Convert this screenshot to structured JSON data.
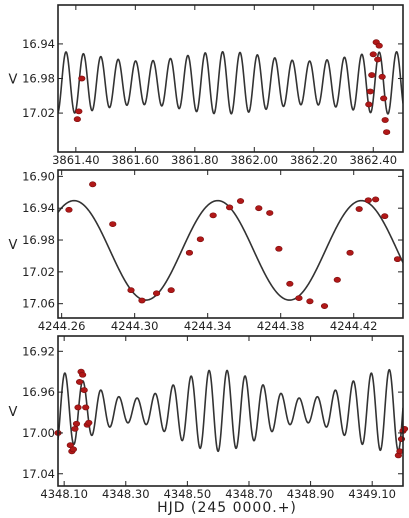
{
  "chart_data": [
    {
      "type": "line",
      "ylabel": "V",
      "xlabel": "",
      "xlim": [
        3861.34,
        3862.5
      ],
      "ylim": [
        17.065,
        16.895
      ],
      "y_inverted": true,
      "xticks": [
        3861.4,
        3861.6,
        3861.8,
        3862.0,
        3862.2,
        3862.4
      ],
      "xtick_labels": [
        "3861.40",
        "3861.60",
        "3861.80",
        "3862.00",
        "3862.20",
        "3862.40"
      ],
      "yticks": [
        16.94,
        16.98,
        17.02
      ],
      "ytick_labels": [
        "16.94",
        "16.98",
        "17.02"
      ],
      "model": {
        "period_days": 0.0585,
        "phase_peak_x": 3861.367,
        "mean_mag": 16.985,
        "amplitude": 0.036,
        "beat_period_days": 0.56,
        "beat_peak_x": 3861.9,
        "beat_depth": 0.15,
        "x_start": 3861.34,
        "x_end": 3862.5
      },
      "series": [
        {
          "kind": "observations",
          "x": [
            3861.405,
            3861.41,
            3861.42,
            3862.385,
            3862.39,
            3862.395,
            3862.4,
            3862.41,
            3862.415,
            3862.42,
            3862.43,
            3862.435,
            3862.44,
            3862.445
          ],
          "y": [
            17.027,
            17.018,
            16.98,
            17.01,
            16.995,
            16.976,
            16.952,
            16.938,
            16.958,
            16.942,
            16.978,
            17.003,
            17.028,
            17.042
          ]
        }
      ]
    },
    {
      "type": "line",
      "ylabel": "V",
      "xlabel": "",
      "xlim": [
        4244.258,
        4244.447
      ],
      "ylim": [
        17.078,
        16.892
      ],
      "y_inverted": true,
      "xticks": [
        4244.26,
        4244.3,
        4244.34,
        4244.38,
        4244.42
      ],
      "xtick_labels": [
        "4244.26",
        "4244.30",
        "4244.34",
        "4244.38",
        "4244.42"
      ],
      "yticks": [
        16.9,
        16.94,
        16.98,
        17.02,
        17.06
      ],
      "ytick_labels": [
        "16.90",
        "16.94",
        "16.98",
        "17.02",
        "17.06"
      ],
      "model": {
        "period_days": 0.0787,
        "phase_peak_x": 4244.3455,
        "mean_mag": 16.993,
        "amplitude": 0.0625,
        "x_start": 4244.258,
        "x_end": 4244.447
      },
      "series": [
        {
          "kind": "observations",
          "x": [
            4244.264,
            4244.277,
            4244.288,
            4244.298,
            4244.304,
            4244.312,
            4244.32,
            4244.33,
            4244.336,
            4244.343,
            4244.352,
            4244.358,
            4244.368,
            4244.374,
            4244.379,
            4244.385,
            4244.39,
            4244.396,
            4244.404,
            4244.411,
            4244.418,
            4244.423,
            4244.428,
            4244.432,
            4244.437,
            4244.444
          ],
          "y": [
            16.942,
            16.91,
            16.96,
            17.043,
            17.056,
            17.047,
            17.043,
            16.996,
            16.979,
            16.949,
            16.939,
            16.931,
            16.94,
            16.946,
            16.991,
            17.035,
            17.053,
            17.057,
            17.063,
            17.03,
            16.996,
            16.941,
            16.93,
            16.929,
            16.95,
            17.004
          ]
        }
      ]
    },
    {
      "type": "line",
      "ylabel": "V",
      "xlabel": "HJD (245 0000.+)",
      "xlim": [
        4348.08,
        4349.2
      ],
      "ylim": [
        17.052,
        16.905
      ],
      "y_inverted": true,
      "xticks": [
        4348.1,
        4348.3,
        4348.5,
        4348.7,
        4348.9,
        4349.1
      ],
      "xtick_labels": [
        "4348.10",
        "4348.30",
        "4348.50",
        "4348.70",
        "4348.90",
        "4349.10"
      ],
      "yticks": [
        16.92,
        16.96,
        17.0,
        17.04
      ],
      "ytick_labels": [
        "16.92",
        "16.96",
        "17.00",
        "17.04"
      ],
      "model": {
        "period_days": 0.0585,
        "phase_peak_x": 4348.161,
        "mean_mag": 16.978,
        "amplitude": 0.04,
        "beat_period_days": 0.56,
        "beat_peak_x": 4348.6,
        "beat_depth": 0.35,
        "x_start": 4348.08,
        "x_end": 4349.2
      },
      "series": [
        {
          "kind": "observations",
          "x": [
            4348.08,
            4348.12,
            4348.125,
            4348.13,
            4348.135,
            4348.14,
            4348.145,
            4348.15,
            4348.155,
            4348.16,
            4348.165,
            4348.17,
            4348.175,
            4348.18,
            4349.185,
            4349.19,
            4349.195,
            4349.2,
            4349.205
          ],
          "y": [
            17.0,
            17.012,
            17.018,
            17.016,
            16.996,
            16.991,
            16.975,
            16.95,
            16.94,
            16.943,
            16.958,
            16.975,
            16.992,
            16.99,
            17.022,
            17.018,
            17.006,
            16.998,
            16.996
          ]
        }
      ]
    }
  ]
}
